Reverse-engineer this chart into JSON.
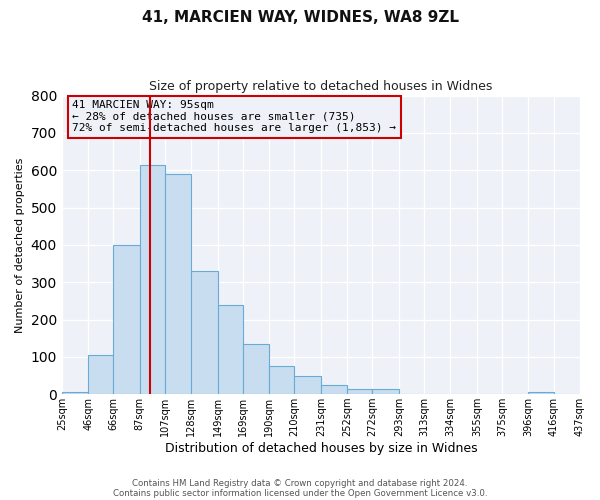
{
  "title": "41, MARCIEN WAY, WIDNES, WA8 9ZL",
  "subtitle": "Size of property relative to detached houses in Widnes",
  "xlabel": "Distribution of detached houses by size in Widnes",
  "ylabel": "Number of detached properties",
  "all_bar_values": [
    5,
    105,
    400,
    615,
    590,
    330,
    238,
    135,
    75,
    50,
    25,
    15,
    15,
    0,
    0,
    0,
    0,
    0,
    5,
    0
  ],
  "bin_labels": [
    "25sqm",
    "46sqm",
    "66sqm",
    "87sqm",
    "107sqm",
    "128sqm",
    "149sqm",
    "169sqm",
    "190sqm",
    "210sqm",
    "231sqm",
    "252sqm",
    "272sqm",
    "293sqm",
    "313sqm",
    "334sqm",
    "355sqm",
    "375sqm",
    "396sqm",
    "416sqm",
    "437sqm"
  ],
  "bar_color": "#c8ddf0",
  "bar_edge_color": "#6aaad4",
  "vline_x": 95,
  "vline_color": "#cc0000",
  "ylim": [
    0,
    800
  ],
  "yticks": [
    0,
    100,
    200,
    300,
    400,
    500,
    600,
    700,
    800
  ],
  "annotation_title": "41 MARCIEN WAY: 95sqm",
  "annotation_line1": "← 28% of detached houses are smaller (735)",
  "annotation_line2": "72% of semi-detached houses are larger (1,853) →",
  "annotation_box_color": "#cc0000",
  "footer_line1": "Contains HM Land Registry data © Crown copyright and database right 2024.",
  "footer_line2": "Contains public sector information licensed under the Open Government Licence v3.0.",
  "bg_color": "#ffffff",
  "plot_bg_color": "#eef2f8",
  "grid_color": "#ffffff",
  "bin_edges": [
    25,
    46,
    66,
    87,
    107,
    128,
    149,
    169,
    190,
    210,
    231,
    252,
    272,
    293,
    313,
    334,
    355,
    375,
    396,
    416,
    437
  ]
}
